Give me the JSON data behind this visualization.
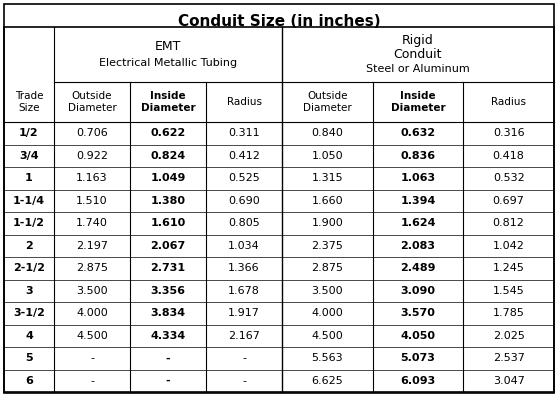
{
  "title": "Conduit Size (in inches)",
  "emt_header1": "EMT",
  "emt_header2": "Electrical Metallic Tubing",
  "rigid_header1": "Rigid",
  "rigid_header2": "Conduit",
  "rigid_header3": "Steel or Aluminum",
  "col_headers": [
    "Outside\nDiameter",
    "Inside\nDiameter",
    "Radius",
    "Outside\nDiameter",
    "Inside\nDiameter",
    "Radius"
  ],
  "trade_size_header": "Trade\nSize",
  "trade_sizes": [
    "1/2",
    "3/4",
    "1",
    "1-1/4",
    "1-1/2",
    "2",
    "2-1/2",
    "3",
    "3-1/2",
    "4",
    "5",
    "6"
  ],
  "emt_data": [
    [
      "0.706",
      "0.622",
      "0.311"
    ],
    [
      "0.922",
      "0.824",
      "0.412"
    ],
    [
      "1.163",
      "1.049",
      "0.525"
    ],
    [
      "1.510",
      "1.380",
      "0.690"
    ],
    [
      "1.740",
      "1.610",
      "0.805"
    ],
    [
      "2.197",
      "2.067",
      "1.034"
    ],
    [
      "2.875",
      "2.731",
      "1.366"
    ],
    [
      "3.500",
      "3.356",
      "1.678"
    ],
    [
      "4.000",
      "3.834",
      "1.917"
    ],
    [
      "4.500",
      "4.334",
      "2.167"
    ],
    [
      "-",
      "-",
      "-"
    ],
    [
      "-",
      "-",
      "-"
    ]
  ],
  "rigid_data": [
    [
      "0.840",
      "0.632",
      "0.316"
    ],
    [
      "1.050",
      "0.836",
      "0.418"
    ],
    [
      "1.315",
      "1.063",
      "0.532"
    ],
    [
      "1.660",
      "1.394",
      "0.697"
    ],
    [
      "1.900",
      "1.624",
      "0.812"
    ],
    [
      "2.375",
      "2.083",
      "1.042"
    ],
    [
      "2.875",
      "2.489",
      "1.245"
    ],
    [
      "3.500",
      "3.090",
      "1.545"
    ],
    [
      "4.000",
      "3.570",
      "1.785"
    ],
    [
      "4.500",
      "4.050",
      "2.025"
    ],
    [
      "5.563",
      "5.073",
      "2.537"
    ],
    [
      "6.625",
      "6.093",
      "3.047"
    ]
  ],
  "inside_diam_bold_col_emt": 1,
  "inside_diam_bold_col_rigid": 1,
  "trade_size_bold": [
    0,
    1,
    2,
    3,
    4,
    5,
    6,
    7,
    8,
    9,
    10,
    11
  ],
  "bg_color": "#ffffff",
  "border_color": "#000000",
  "text_color": "#000000"
}
